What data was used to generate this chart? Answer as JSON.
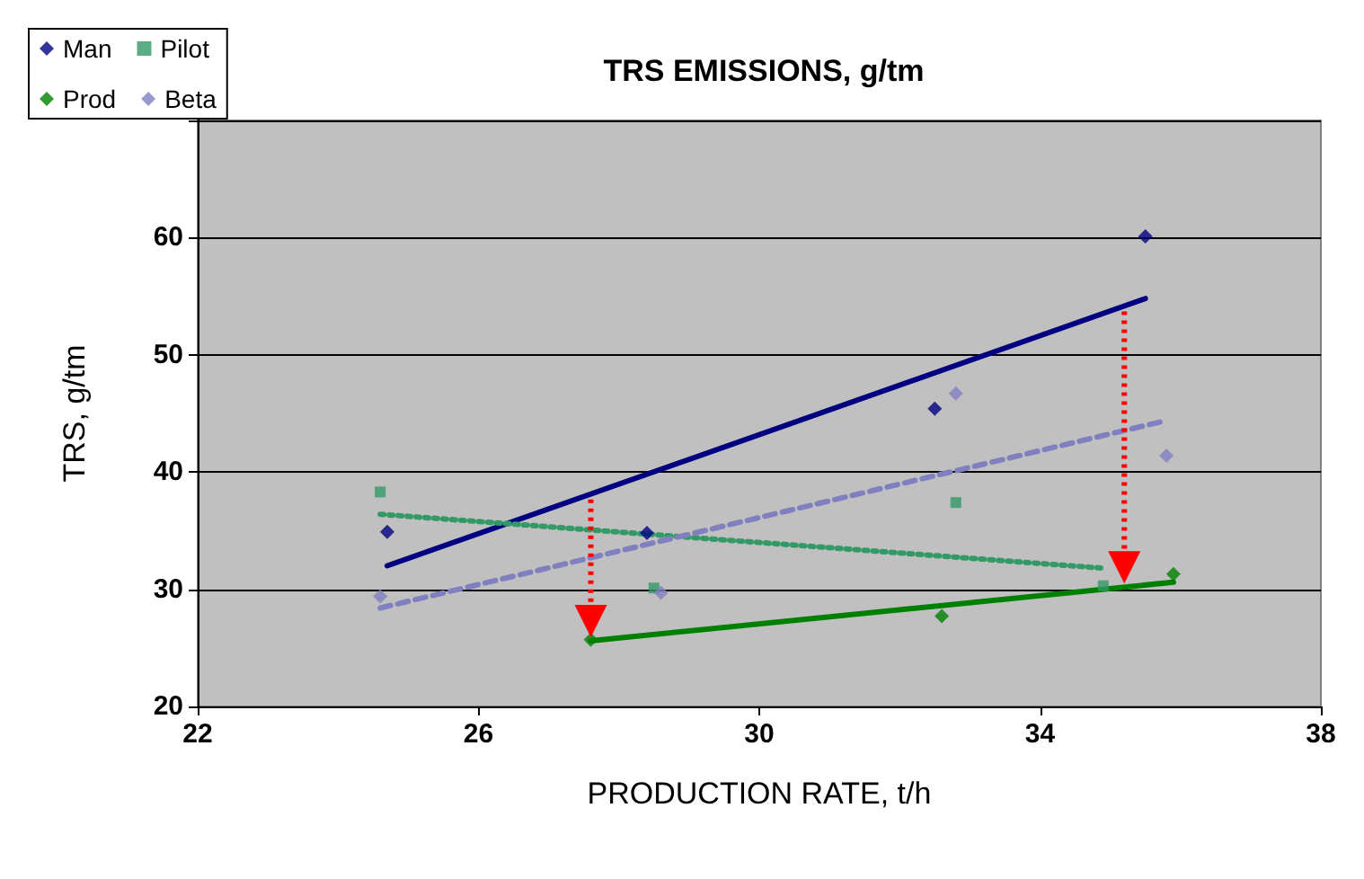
{
  "chart_data": {
    "type": "scatter",
    "title": "TRS EMISSIONS, g/tm",
    "xlabel": "PRODUCTION RATE, t/h",
    "ylabel": "TRS, g/tm",
    "xlim": [
      22,
      38
    ],
    "xticks": [
      22,
      26,
      30,
      34,
      38
    ],
    "ylim": [
      20,
      70
    ],
    "yticks": [
      20,
      30,
      40,
      50,
      60,
      {
        "value": 70,
        "label": null
      }
    ],
    "grid": "y",
    "legend": "top left",
    "series": [
      {
        "name": "Man",
        "color": "#000080",
        "marker": "diamond",
        "x": [
          24.7,
          28.4,
          32.5,
          35.5
        ],
        "values": [
          34.9,
          34.8,
          45.4,
          60.1
        ]
      },
      {
        "name": "Pilot",
        "color": "#339966",
        "marker": "square",
        "x": [
          24.6,
          28.5,
          32.8,
          34.9
        ],
        "values": [
          38.3,
          30.1,
          37.4,
          30.3
        ]
      },
      {
        "name": "Prod",
        "color": "#008000",
        "marker": "diamond",
        "x": [
          27.6,
          32.6,
          35.9
        ],
        "values": [
          25.7,
          27.7,
          31.3
        ]
      },
      {
        "name": "Beta",
        "color": "#8080c0",
        "marker": "diamond",
        "x": [
          24.6,
          28.6,
          32.8,
          35.8
        ],
        "values": [
          29.4,
          29.7,
          46.7,
          41.4
        ]
      },
      {
        "type": "line",
        "color": "#000080",
        "line_style": "solid",
        "marker": "none",
        "x": [
          24.7,
          35.5
        ],
        "values": [
          32.0,
          54.8
        ]
      },
      {
        "type": "line",
        "color": "#339966",
        "line_style": "dotted",
        "marker": "none",
        "x": [
          24.6,
          34.9
        ],
        "values": [
          36.4,
          31.8
        ]
      },
      {
        "type": "line",
        "color": "#008000",
        "line_style": "solid",
        "marker": "none",
        "x": [
          27.6,
          35.9
        ],
        "values": [
          25.6,
          30.6
        ]
      },
      {
        "type": "line",
        "color": "#8080c0",
        "line_style": "dashed",
        "marker": "none",
        "x": [
          24.6,
          35.8
        ],
        "values": [
          28.4,
          44.4
        ]
      }
    ]
  }
}
